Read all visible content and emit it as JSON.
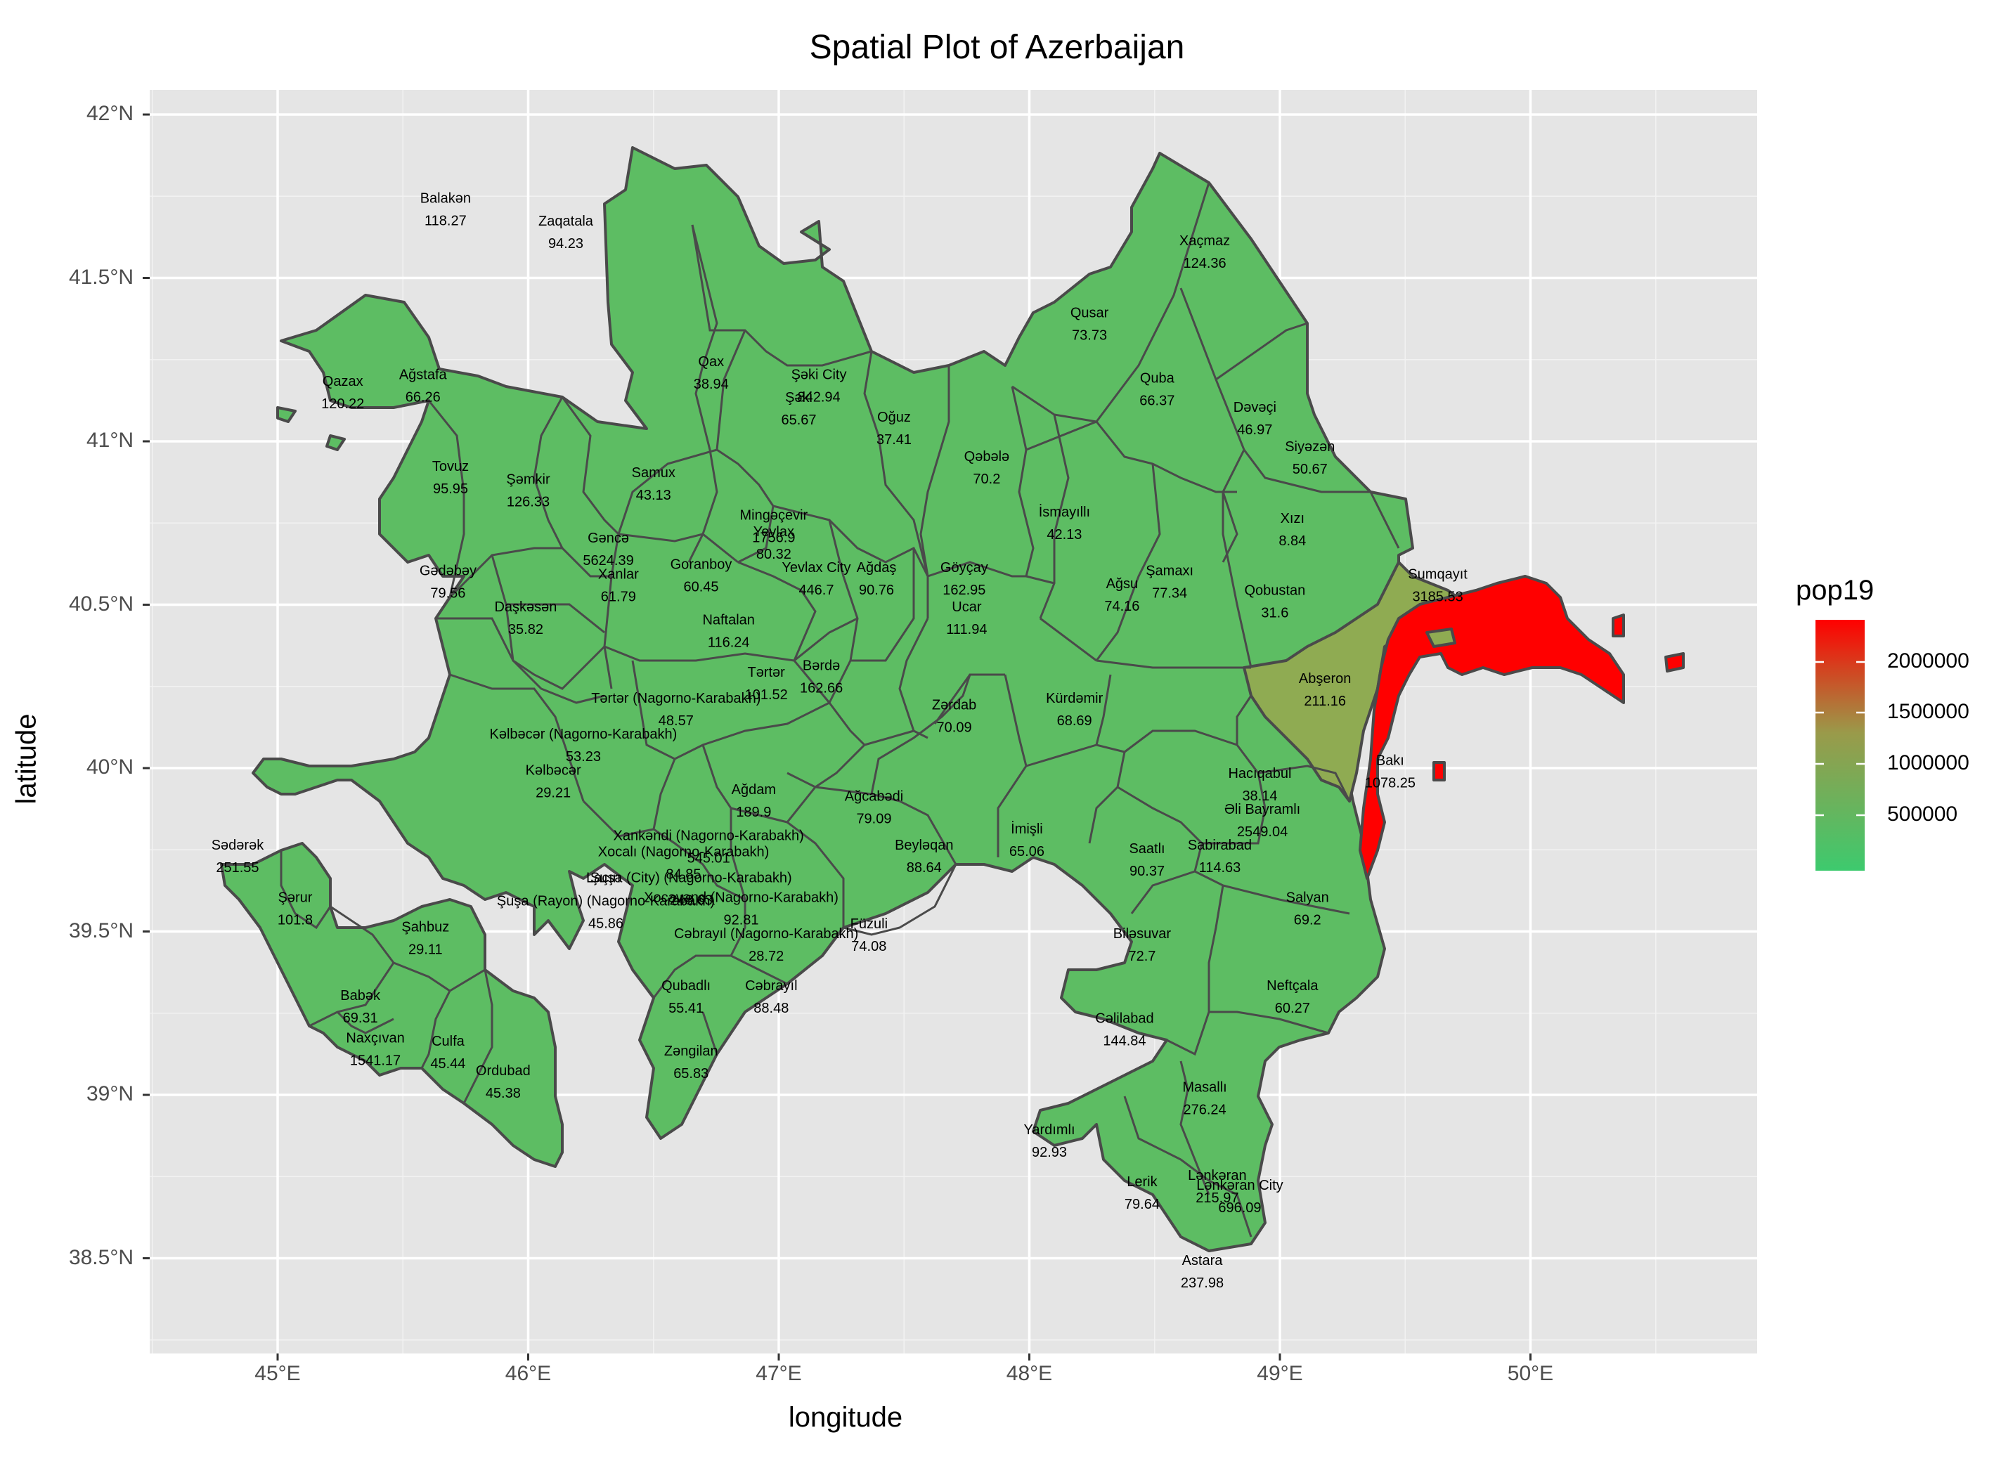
{
  "title": "Spatial Plot of Azerbaijan",
  "xlabel": "longitude",
  "ylabel": "latitude",
  "x_ticks": [
    "45°E",
    "46°E",
    "47°E",
    "48°E",
    "49°E",
    "50°E"
  ],
  "y_ticks": [
    "42°N",
    "41.5°N",
    "41°N",
    "40.5°N",
    "40°N",
    "39.5°N",
    "39°N",
    "38.5°N"
  ],
  "legend": {
    "title": "pop19",
    "labels": [
      "2000000",
      "1500000",
      "1000000",
      "500000"
    ],
    "low_color": "#3dca6e",
    "high_color": "#ff0000",
    "mid_color": "#9a9a4a"
  },
  "colors": {
    "panel": "#e5e5e5",
    "grid": "#ffffff",
    "border": "#4a4a4a"
  },
  "chart_data": {
    "type": "map",
    "x_range": [
      44.5,
      50.9
    ],
    "y_range": [
      38.2,
      42.1
    ],
    "regions": [
      {
        "name": "Balakən",
        "value": "118.27",
        "lon": 45.67,
        "lat": 41.7
      },
      {
        "name": "Zaqatala",
        "value": "94.23",
        "lon": 46.15,
        "lat": 41.63
      },
      {
        "name": "Qax",
        "value": "38.94",
        "lon": 46.73,
        "lat": 41.2
      },
      {
        "name": "Şəki City",
        "value": "842.94",
        "lon": 47.16,
        "lat": 41.16
      },
      {
        "name": "Şəki",
        "value": "65.67",
        "lon": 47.08,
        "lat": 41.09
      },
      {
        "name": "Oğuz",
        "value": "37.41",
        "lon": 47.46,
        "lat": 41.03
      },
      {
        "name": "Qəbələ",
        "value": "70.2",
        "lon": 47.83,
        "lat": 40.91
      },
      {
        "name": "Qusar",
        "value": "73.73",
        "lon": 48.24,
        "lat": 41.35
      },
      {
        "name": "Xaçmaz",
        "value": "124.36",
        "lon": 48.7,
        "lat": 41.57
      },
      {
        "name": "Quba",
        "value": "66.37",
        "lon": 48.51,
        "lat": 41.15
      },
      {
        "name": "Dəvəçi",
        "value": "46.97",
        "lon": 48.9,
        "lat": 41.06
      },
      {
        "name": "Siyəzən",
        "value": "50.67",
        "lon": 49.12,
        "lat": 40.94
      },
      {
        "name": "Xızı",
        "value": "8.84",
        "lon": 49.05,
        "lat": 40.72
      },
      {
        "name": "Qazax",
        "value": "120.22",
        "lon": 45.26,
        "lat": 41.14
      },
      {
        "name": "Ağstafa",
        "value": "66.26",
        "lon": 45.58,
        "lat": 41.16
      },
      {
        "name": "Tovuz",
        "value": "95.95",
        "lon": 45.69,
        "lat": 40.88
      },
      {
        "name": "Şəmkir",
        "value": "126.33",
        "lon": 46.0,
        "lat": 40.84
      },
      {
        "name": "Samux",
        "value": "43.13",
        "lon": 46.5,
        "lat": 40.86
      },
      {
        "name": "Gədəbəy",
        "value": "79.56",
        "lon": 45.68,
        "lat": 40.56
      },
      {
        "name": "Gəncə",
        "value": "5624.39",
        "lon": 46.32,
        "lat": 40.66
      },
      {
        "name": "Xanlar",
        "value": "61.79",
        "lon": 46.36,
        "lat": 40.55
      },
      {
        "name": "Daşkəsən",
        "value": "35.82",
        "lon": 45.99,
        "lat": 40.45
      },
      {
        "name": "Goranboy",
        "value": "60.45",
        "lon": 46.69,
        "lat": 40.58
      },
      {
        "name": "Mingəçevir",
        "value": "1756.9",
        "lon": 46.98,
        "lat": 40.73
      },
      {
        "name": "Yevlax",
        "value": "80.32",
        "lon": 46.98,
        "lat": 40.68
      },
      {
        "name": "Yevlax City",
        "value": "446.7",
        "lon": 47.15,
        "lat": 40.57
      },
      {
        "name": "Ağdaş",
        "value": "90.76",
        "lon": 47.39,
        "lat": 40.57
      },
      {
        "name": "İsmayıllı",
        "value": "42.13",
        "lon": 48.14,
        "lat": 40.74
      },
      {
        "name": "Göyçay",
        "value": "162.95",
        "lon": 47.74,
        "lat": 40.57
      },
      {
        "name": "Ucar",
        "value": "111.94",
        "lon": 47.75,
        "lat": 40.45
      },
      {
        "name": "Ağsu",
        "value": "74.16",
        "lon": 48.37,
        "lat": 40.52
      },
      {
        "name": "Şamaxı",
        "value": "77.34",
        "lon": 48.56,
        "lat": 40.56
      },
      {
        "name": "Qobustan",
        "value": "31.6",
        "lon": 48.98,
        "lat": 40.5
      },
      {
        "name": "Sumqayıt",
        "value": "3185.53",
        "lon": 49.63,
        "lat": 40.55
      },
      {
        "name": "Abşeron",
        "value": "211.16",
        "lon": 49.18,
        "lat": 40.23
      },
      {
        "name": "Bakı",
        "value": "1078.25",
        "lon": 49.44,
        "lat": 39.98
      },
      {
        "name": "Naftalan",
        "value": "116.24",
        "lon": 46.8,
        "lat": 40.41
      },
      {
        "name": "Tərtər",
        "value": "101.52",
        "lon": 46.95,
        "lat": 40.25
      },
      {
        "name": "Bərdə",
        "value": "162.66",
        "lon": 47.17,
        "lat": 40.27
      },
      {
        "name": "Tərtər (Nagorno-Karabakh)",
        "value": "48.57",
        "lon": 46.59,
        "lat": 40.17
      },
      {
        "name": "Zərdab",
        "value": "70.09",
        "lon": 47.7,
        "lat": 40.15
      },
      {
        "name": "Kürdəmir",
        "value": "68.69",
        "lon": 48.18,
        "lat": 40.17
      },
      {
        "name": "Kəlbəcər (Nagorno-Karabakh)",
        "value": "53.23",
        "lon": 46.22,
        "lat": 40.06
      },
      {
        "name": "Kəlbəcər",
        "value": "29.21",
        "lon": 46.1,
        "lat": 39.95
      },
      {
        "name": "Hacıqabul",
        "value": "38.14",
        "lon": 48.92,
        "lat": 39.94
      },
      {
        "name": "Ağdam",
        "value": "189.9",
        "lon": 46.9,
        "lat": 39.89
      },
      {
        "name": "Ağcabədi",
        "value": "79.09",
        "lon": 47.38,
        "lat": 39.87
      },
      {
        "name": "Əli Bayramlı",
        "value": "2549.04",
        "lon": 48.93,
        "lat": 39.83
      },
      {
        "name": "Sabirabad",
        "value": "114.63",
        "lon": 48.76,
        "lat": 39.72
      },
      {
        "name": "İmişli",
        "value": "65.06",
        "lon": 47.99,
        "lat": 39.77
      },
      {
        "name": "Beyləqan",
        "value": "88.64",
        "lon": 47.58,
        "lat": 39.72
      },
      {
        "name": "Saatlı",
        "value": "90.37",
        "lon": 48.47,
        "lat": 39.71
      },
      {
        "name": "Xankəndi (Nagorno-Karabakh)",
        "value": "545.01",
        "lon": 46.72,
        "lat": 39.75
      },
      {
        "name": "Xocalı (Nagorno-Karabakh)",
        "value": "84.85",
        "lon": 46.62,
        "lat": 39.7
      },
      {
        "name": "Şuşa (City) (Nagorno-Karabakh)",
        "value": "248.63",
        "lon": 46.65,
        "lat": 39.62
      },
      {
        "name": "Şuşa (Rayon) (Nagorno-Karabakh)",
        "value": "45.86",
        "lon": 46.31,
        "lat": 39.55
      },
      {
        "name": "Laçın",
        "value": "",
        "lon": 46.3,
        "lat": 39.62
      },
      {
        "name": "Xocavənd (Nagorno-Karabakh)",
        "value": "92.81",
        "lon": 46.85,
        "lat": 39.56
      },
      {
        "name": "Cəbrayıl (Nagorno-Karabakh)",
        "value": "28.72",
        "lon": 46.95,
        "lat": 39.45
      },
      {
        "name": "Füzuli",
        "value": "74.08",
        "lon": 47.36,
        "lat": 39.48
      },
      {
        "name": "Qubadlı",
        "value": "55.41",
        "lon": 46.63,
        "lat": 39.29
      },
      {
        "name": "Cəbrayıl",
        "value": "88.48",
        "lon": 46.97,
        "lat": 39.29
      },
      {
        "name": "Zəngilan",
        "value": "65.83",
        "lon": 46.65,
        "lat": 39.09
      },
      {
        "name": "Salyan",
        "value": "69.2",
        "lon": 49.11,
        "lat": 39.56
      },
      {
        "name": "Biləsuvar",
        "value": "72.7",
        "lon": 48.45,
        "lat": 39.45
      },
      {
        "name": "Neftçala",
        "value": "60.27",
        "lon": 49.05,
        "lat": 39.29
      },
      {
        "name": "Cəlilabad",
        "value": "144.84",
        "lon": 48.38,
        "lat": 39.19
      },
      {
        "name": "Masallı",
        "value": "276.24",
        "lon": 48.7,
        "lat": 38.98
      },
      {
        "name": "Yardımlı",
        "value": "92.93",
        "lon": 48.08,
        "lat": 38.85
      },
      {
        "name": "Lerik",
        "value": "79.64",
        "lon": 48.45,
        "lat": 38.69
      },
      {
        "name": "Lənkəran",
        "value": "215.97",
        "lon": 48.75,
        "lat": 38.71
      },
      {
        "name": "Lənkəran City",
        "value": "696.09",
        "lon": 48.84,
        "lat": 38.68
      },
      {
        "name": "Astara",
        "value": "237.98",
        "lon": 48.69,
        "lat": 38.45
      },
      {
        "name": "Sədərək",
        "value": "251.55",
        "lon": 44.84,
        "lat": 39.72
      },
      {
        "name": "Şərur",
        "value": "101.8",
        "lon": 45.07,
        "lat": 39.56
      },
      {
        "name": "Şahbuz",
        "value": "29.11",
        "lon": 45.59,
        "lat": 39.47
      },
      {
        "name": "Babək",
        "value": "69.31",
        "lon": 45.33,
        "lat": 39.26
      },
      {
        "name": "Naxçıvan",
        "value": "1541.17",
        "lon": 45.39,
        "lat": 39.13
      },
      {
        "name": "Culfa",
        "value": "45.44",
        "lon": 45.68,
        "lat": 39.12
      },
      {
        "name": "Ordubad",
        "value": "45.38",
        "lon": 45.9,
        "lat": 39.03
      }
    ]
  }
}
